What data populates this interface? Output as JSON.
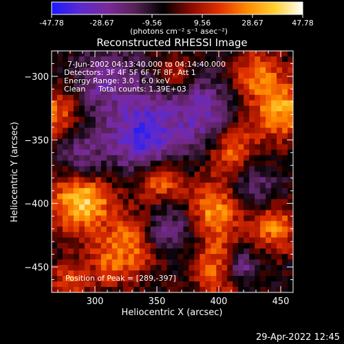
{
  "chart_data": {
    "type": "heatmap",
    "title": "Reconstructed RHESSI Image",
    "xlabel": "Heliocentric X (arcsec)",
    "ylabel": "Heliocentric Y (arcsec)",
    "xlim": [
      265,
      460
    ],
    "ylim": [
      -470,
      -280
    ],
    "xticks": [
      300,
      350,
      400,
      450
    ],
    "yticks": [
      -300,
      -350,
      -400,
      -450
    ],
    "colorbar": {
      "min": -47.78,
      "max": 47.78,
      "ticks": [
        "-47.78",
        "-28.67",
        "-9.56",
        "9.56",
        "28.67",
        "47.78"
      ],
      "unit_text": "(photons cm⁻² s⁻¹ asec⁻²)",
      "colors": [
        "#1a1aff",
        "#5a2ad0",
        "#7a2a9a",
        "#552255",
        "#000000",
        "#8a0a00",
        "#e03000",
        "#ff8a00",
        "#ffd030",
        "#ffffff"
      ]
    },
    "annotations": {
      "time_range": "7-Jun-2002 04:13:40.000 to 04:14:40.000",
      "detectors": "Detectors: 3F 4F 5F 6F 7F 8F, Att 1",
      "energy_range": "Energy Range: 3.0 - 6.0 keV",
      "method": "Clean",
      "total_counts": "Total counts: 1.39E+03",
      "peak_position": "Position of Peak = [289,-397]"
    },
    "hot_regions": [
      {
        "x": 290,
        "y": -398,
        "value": 47.8,
        "radius": 18
      },
      {
        "x": 352,
        "y": -380,
        "value": 40,
        "radius": 14
      },
      {
        "x": 408,
        "y": -355,
        "value": 36,
        "radius": 16
      },
      {
        "x": 450,
        "y": -325,
        "value": 38,
        "radius": 18
      },
      {
        "x": 430,
        "y": -300,
        "value": 30,
        "radius": 14
      },
      {
        "x": 395,
        "y": -405,
        "value": 34,
        "radius": 16
      },
      {
        "x": 330,
        "y": -430,
        "value": 30,
        "radius": 16
      },
      {
        "x": 405,
        "y": -450,
        "value": 36,
        "radius": 18
      },
      {
        "x": 270,
        "y": -330,
        "value": 28,
        "radius": 16
      },
      {
        "x": 315,
        "y": -445,
        "value": 26,
        "radius": 14
      },
      {
        "x": 445,
        "y": -420,
        "value": 30,
        "radius": 14
      },
      {
        "x": 365,
        "y": -300,
        "value": 24,
        "radius": 12
      },
      {
        "x": 280,
        "y": -460,
        "value": 22,
        "radius": 12
      }
    ],
    "cold_regions": [
      {
        "x": 340,
        "y": -345,
        "value": -47.8,
        "radius": 22
      },
      {
        "x": 385,
        "y": -330,
        "value": -36,
        "radius": 20
      },
      {
        "x": 310,
        "y": -305,
        "value": -30,
        "radius": 18
      },
      {
        "x": 420,
        "y": -450,
        "value": -28,
        "radius": 12
      },
      {
        "x": 360,
        "y": -420,
        "value": -24,
        "radius": 14
      },
      {
        "x": 290,
        "y": -360,
        "value": -26,
        "radius": 14
      },
      {
        "x": 430,
        "y": -385,
        "value": -20,
        "radius": 12
      }
    ]
  },
  "timestamp": "29-Apr-2022 12:45"
}
